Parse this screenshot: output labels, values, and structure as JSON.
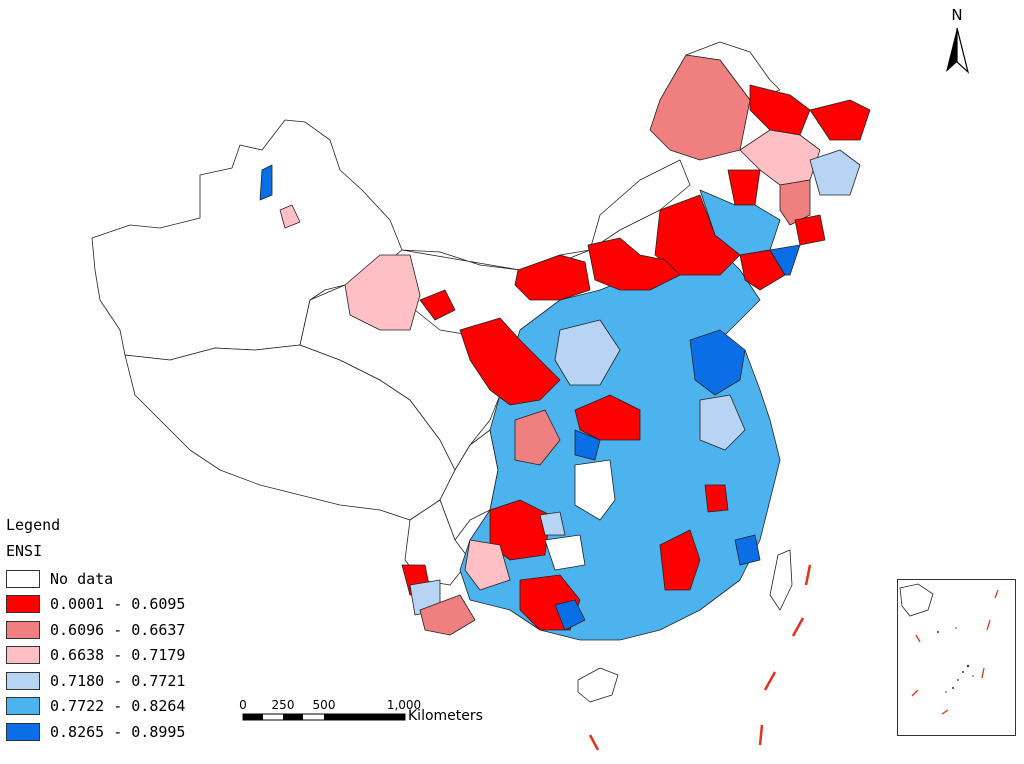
{
  "legend": {
    "title": "Legend",
    "field": "ENSI",
    "items": [
      {
        "label": "No data",
        "color": "#ffffff"
      },
      {
        "label": "0.0001 - 0.6095",
        "color": "#ff0000"
      },
      {
        "label": "0.6096 - 0.6637",
        "color": "#f08080"
      },
      {
        "label": "0.6638 - 0.7179",
        "color": "#ffc0c5"
      },
      {
        "label": "0.7180 - 0.7721",
        "color": "#b8d4f5"
      },
      {
        "label": "0.7722 - 0.8264",
        "color": "#4db3ee"
      },
      {
        "label": "0.8265 - 0.8995",
        "color": "#0a6fe6"
      }
    ]
  },
  "north_arrow": {
    "label": "N"
  },
  "scale_bar": {
    "ticks": [
      "0",
      "250",
      "500",
      "1,000"
    ],
    "unit": "Kilometers"
  },
  "colors": {
    "nodata": "#ffffff",
    "c1": "#ff0000",
    "c2": "#f08080",
    "c3": "#ffc0c5",
    "c4": "#b8d4f5",
    "c5": "#4db3ee",
    "c6": "#0a6fe6",
    "border": "#222222",
    "boundary_line": "#e8301a"
  }
}
